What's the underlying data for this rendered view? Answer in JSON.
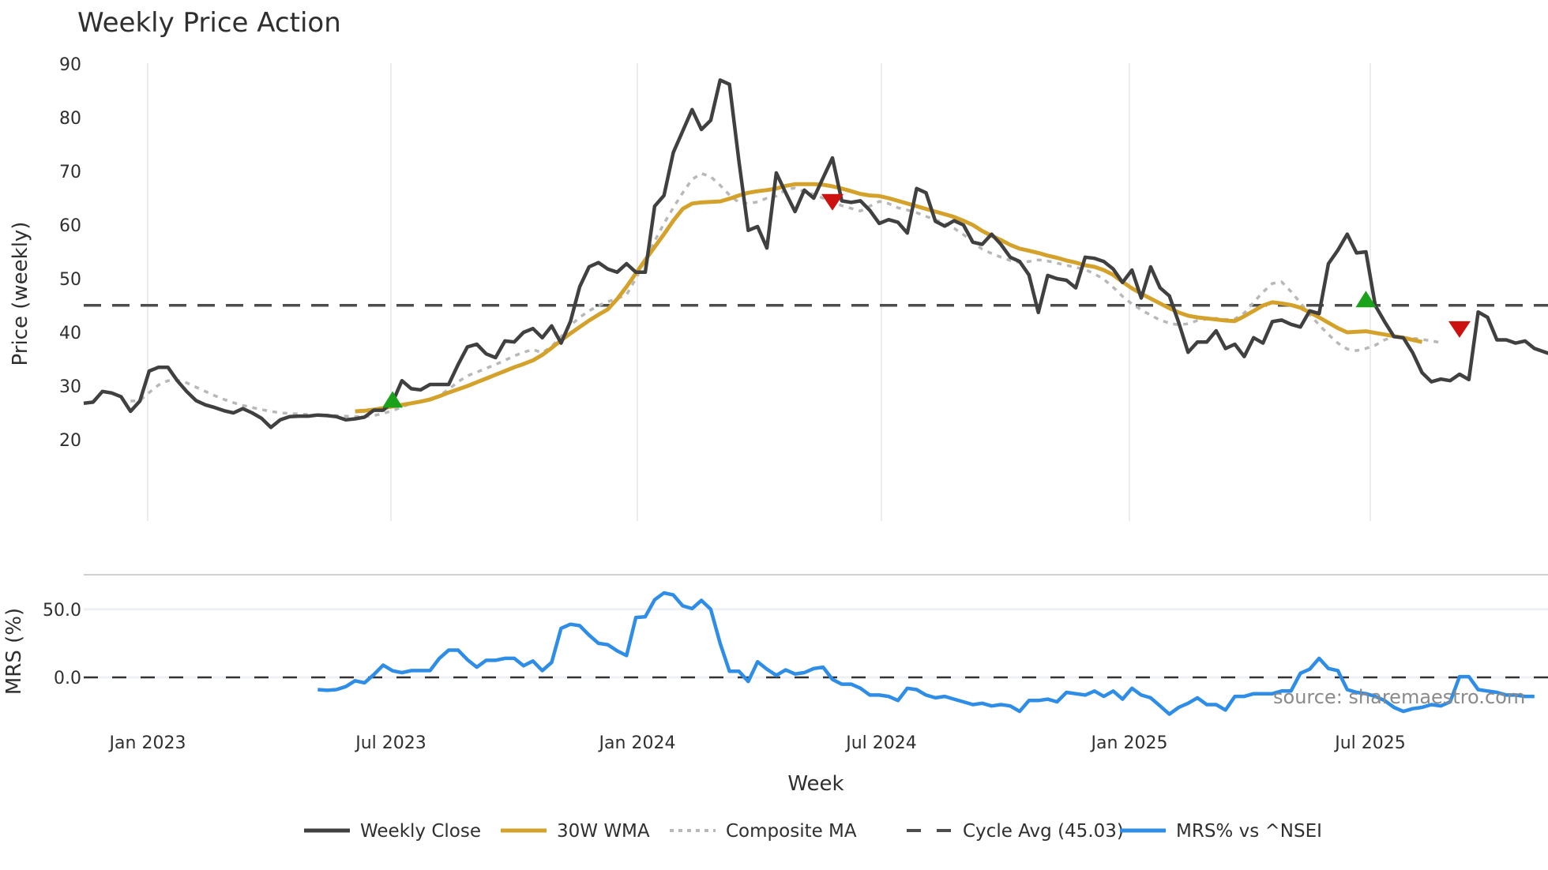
{
  "chart_data": {
    "type": "line",
    "title": "Weekly Price Action",
    "panels": [
      {
        "name": "price",
        "ylabel": "Price (weekly)",
        "ylim": [
          20,
          90
        ],
        "yticks": [
          20,
          30,
          40,
          50,
          60,
          70,
          80,
          90
        ],
        "grid": "vertical"
      },
      {
        "name": "mrs",
        "ylabel": "MRS (%)",
        "yticks": [
          "0.0",
          "50.0"
        ],
        "ytick_values": [
          0,
          50
        ]
      }
    ],
    "xlabel": "Week",
    "xticks": [
      "Jan 2023",
      "Jul 2023",
      "Jan 2024",
      "Jul 2024",
      "Jan 2025",
      "Jul 2025"
    ],
    "cycle_avg": 45.03,
    "series": [
      {
        "name": "Weekly Close",
        "color": "#404040",
        "start_week": 0,
        "values": [
          26.8,
          27,
          29,
          28.7,
          28,
          25.3,
          27.2,
          32.8,
          33.5,
          33.5,
          31,
          29,
          27.3,
          26.5,
          26,
          25.4,
          25,
          25.8,
          25,
          24,
          22.3,
          23.7,
          24.3,
          24.4,
          24.4,
          24.6,
          24.5,
          24.3,
          23.7,
          23.9,
          24.2,
          25.5,
          25.5,
          27,
          31,
          29.5,
          29.3,
          30.3,
          30.3,
          30.3,
          34,
          37.3,
          37.8,
          36,
          35.3,
          38.4,
          38.2,
          40,
          40.7,
          39,
          41.2,
          38,
          42,
          48.5,
          52.2,
          53,
          51.8,
          51.2,
          52.8,
          51.2,
          51.2,
          63.5,
          65.5,
          73.5,
          77.5,
          81.5,
          77.8,
          79.5,
          87,
          86.2,
          72,
          59,
          59.7,
          55.7,
          69.7,
          66,
          62.5,
          66.5,
          65,
          68.8,
          72.5,
          64.5,
          64.2,
          64.5,
          62.7,
          60.3,
          61,
          60.5,
          58.5,
          66.8,
          66,
          60.7,
          59.8,
          60.8,
          60,
          56.8,
          56.4,
          58.3,
          56.4,
          54,
          53.2,
          50.7,
          43.7,
          50.6,
          50,
          49.7,
          48.3,
          54,
          53.8,
          53.2,
          51.8,
          49.3,
          51.6,
          46.4,
          52.2,
          48.3,
          46.8,
          41.8,
          36.3,
          38.2,
          38.2,
          40.3,
          37,
          37.8,
          35.5,
          39,
          38,
          42,
          42.3,
          41.5,
          41,
          44,
          43.5,
          52.8,
          55.3,
          58.3,
          54.8,
          55,
          45,
          42,
          39.2,
          39,
          36.2,
          32.5,
          30.8,
          31.3,
          31,
          32.2,
          31.2,
          43.8,
          42.8,
          38.6,
          38.6,
          38,
          38.4,
          37,
          36.4,
          35.8,
          35.2
        ]
      },
      {
        "name": "30W WMA",
        "color": "#d4a22a",
        "start_week": 29,
        "values": [
          25.3,
          25.4,
          25.6,
          25.9,
          26.2,
          26.5,
          26.8,
          27.1,
          27.5,
          28.1,
          28.8,
          29.4,
          30,
          30.7,
          31.4,
          32.1,
          32.8,
          33.5,
          34.1,
          34.8,
          35.8,
          37.1,
          38.5,
          39.8,
          41,
          42.2,
          43.3,
          44.3,
          46.2,
          48.5,
          51,
          53.5,
          55.9,
          58.3,
          60.8,
          63,
          64,
          64.2,
          64.3,
          64.4,
          64.9,
          65.5,
          66,
          66.3,
          66.5,
          66.8,
          67.3,
          67.6,
          67.6,
          67.6,
          67.5,
          67.2,
          66.8,
          66.3,
          65.8,
          65.5,
          65.4,
          65,
          64.5,
          64,
          63.5,
          63,
          62.5,
          62,
          61.5,
          60.8,
          60,
          58.9,
          58,
          57.2,
          56.3,
          55.6,
          55.2,
          54.8,
          54.3,
          53.9,
          53.4,
          53,
          52.5,
          52.2,
          51.6,
          50.7,
          49.4,
          48.2,
          47.2,
          46.3,
          45.4,
          44.5,
          43.7,
          43.1,
          42.8,
          42.6,
          42.4,
          42.2,
          42.1,
          43,
          44,
          45,
          45.6,
          45.4,
          45.1,
          44.6,
          43.7,
          42.8,
          41.8,
          40.8,
          40,
          40.1,
          40.2,
          39.9,
          39.6,
          39.3,
          39,
          38.6,
          38.2
        ]
      },
      {
        "name": "Composite MA",
        "color": "#b8b8b8",
        "start_week": 5,
        "values": [
          27.2,
          27.3,
          28.8,
          30.2,
          31,
          31.1,
          30.6,
          29.8,
          29,
          28.2,
          27.5,
          26.9,
          26.4,
          26,
          25.6,
          25.3,
          25,
          24.9,
          24.8,
          24.7,
          24.6,
          24.6,
          24.5,
          24.4,
          24.3,
          24.3,
          24.5,
          24.9,
          25.4,
          26.1,
          26.8,
          27.1,
          27.6,
          28.2,
          29.4,
          30.8,
          31.9,
          32.6,
          33.3,
          34,
          34.8,
          35.6,
          36.3,
          36.8,
          36.2,
          37.4,
          39.2,
          41.3,
          42.8,
          44,
          45,
          45.7,
          46.3,
          47,
          50,
          53.5,
          57,
          60.3,
          63.2,
          66,
          68.5,
          69.6,
          69,
          67.4,
          65.6,
          64.2,
          64,
          64.3,
          65,
          65.4,
          66.6,
          66.9,
          66.2,
          65.7,
          65,
          64.3,
          63.6,
          63.1,
          62.6,
          63.5,
          64.4,
          64,
          63.2,
          62.8,
          62.3,
          61.6,
          61,
          60.3,
          59.4,
          58.2,
          56.8,
          55.5,
          54.7,
          54,
          53.4,
          53,
          53.2,
          53.5,
          53.3,
          52.9,
          52.5,
          52.1,
          51.7,
          50.9,
          49.9,
          48.4,
          46.7,
          45.3,
          44.2,
          43.2,
          42.3,
          41.7,
          41.4,
          41.6,
          42.2,
          42.5,
          42.6,
          42.4,
          42.5,
          43.6,
          45.6,
          47.5,
          49.1,
          49.4,
          47.6,
          45.5,
          43.3,
          41.4,
          39.6,
          38,
          36.9,
          36.6,
          37,
          37.6,
          38.6,
          39.2,
          39,
          38.9,
          38.7,
          38.4,
          38.1
        ]
      },
      {
        "name": "Cycle Avg (45.03)",
        "color": "#4d4d4d",
        "value": 45.03,
        "style": "dashed"
      },
      {
        "name": "MRS% vs ^NSEI",
        "color": "#2e8de6",
        "panel": "mrs",
        "start_week": 25,
        "values": [
          -9,
          -9.5,
          -9,
          -6.8,
          -2.5,
          -4,
          2,
          9,
          4.8,
          3.5,
          5,
          5,
          5,
          14,
          20,
          20,
          13,
          7.5,
          12.5,
          12.5,
          14,
          14,
          8.5,
          12,
          5,
          11,
          36,
          39,
          38,
          31,
          25,
          24,
          19.5,
          16,
          44,
          44.5,
          57,
          62,
          60.5,
          52.5,
          50.5,
          56.5,
          50,
          25,
          4.5,
          4.5,
          -3,
          11.5,
          6,
          1.5,
          5.5,
          2.5,
          3.5,
          6.5,
          7.5,
          -1.5,
          -5,
          -5,
          -8,
          -13,
          -13,
          -14,
          -17,
          -8,
          -9,
          -13,
          -15,
          -14,
          -16,
          -18,
          -20,
          -19,
          -21,
          -20,
          -21,
          -25,
          -17,
          -17,
          -16,
          -18,
          -11,
          -12,
          -13,
          -10,
          -14,
          -10,
          -16,
          -8,
          -13,
          -15,
          -21,
          -27,
          -22,
          -19,
          -15,
          -20,
          -20,
          -24,
          -14,
          -14,
          -12,
          -12,
          -12,
          -10,
          -10,
          3,
          6,
          14,
          6.5,
          5,
          -9,
          -11,
          -12,
          -14,
          -17,
          -22,
          -25,
          -23,
          -22,
          -20,
          -21,
          -18,
          0.5,
          0.5,
          -9,
          -10,
          -11,
          -13,
          -13,
          -14,
          -14
        ]
      }
    ],
    "signals": [
      {
        "type": "buy",
        "week": 33,
        "value": 27.3,
        "color": "#1aa31a"
      },
      {
        "type": "sell",
        "week": 80,
        "value": 64.3,
        "color": "#cc1111"
      },
      {
        "type": "buy",
        "week": 137,
        "value": 46,
        "color": "#1aa31a"
      },
      {
        "type": "sell",
        "week": 147,
        "value": 40.6,
        "color": "#cc1111"
      }
    ],
    "legend": {
      "position": "bottom",
      "entries": [
        {
          "label": "Weekly Close",
          "style": "solid",
          "color": "#404040"
        },
        {
          "label": "30W WMA",
          "style": "solid",
          "color": "#d4a22a"
        },
        {
          "label": "Composite MA",
          "style": "dotted",
          "color": "#b8b8b8"
        },
        {
          "label": "Cycle Avg (45.03)",
          "style": "dashed",
          "color": "#4d4d4d"
        },
        {
          "label": "MRS% vs ^NSEI",
          "style": "solid",
          "color": "#2e8de6"
        }
      ]
    },
    "annotation": "source: sharemaestro.com"
  }
}
